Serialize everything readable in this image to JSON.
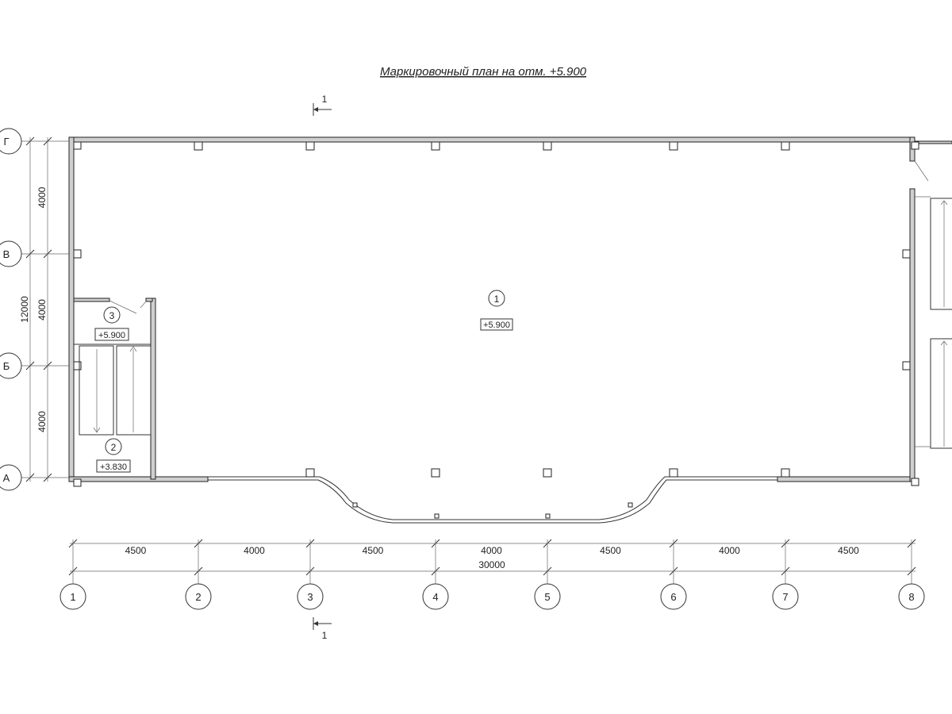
{
  "title": "Маркировочный план на отм. +5.900",
  "section_mark": "1",
  "row_axes": [
    "Г",
    "В",
    "Б",
    "А"
  ],
  "column_axes": [
    "1",
    "2",
    "3",
    "4",
    "5",
    "6",
    "7",
    "8"
  ],
  "dims_horizontal": [
    "4500",
    "4000",
    "4500",
    "4000",
    "4500",
    "4000",
    "4500"
  ],
  "dim_total_horizontal": "30000",
  "dims_vertical": [
    "4000",
    "4000",
    "4000"
  ],
  "dim_total_vertical": "12000",
  "rooms": [
    {
      "number": "1",
      "level": "+5.900"
    },
    {
      "number": "3",
      "level": "+5.900"
    },
    {
      "number": "2",
      "level": "+3.830"
    }
  ]
}
